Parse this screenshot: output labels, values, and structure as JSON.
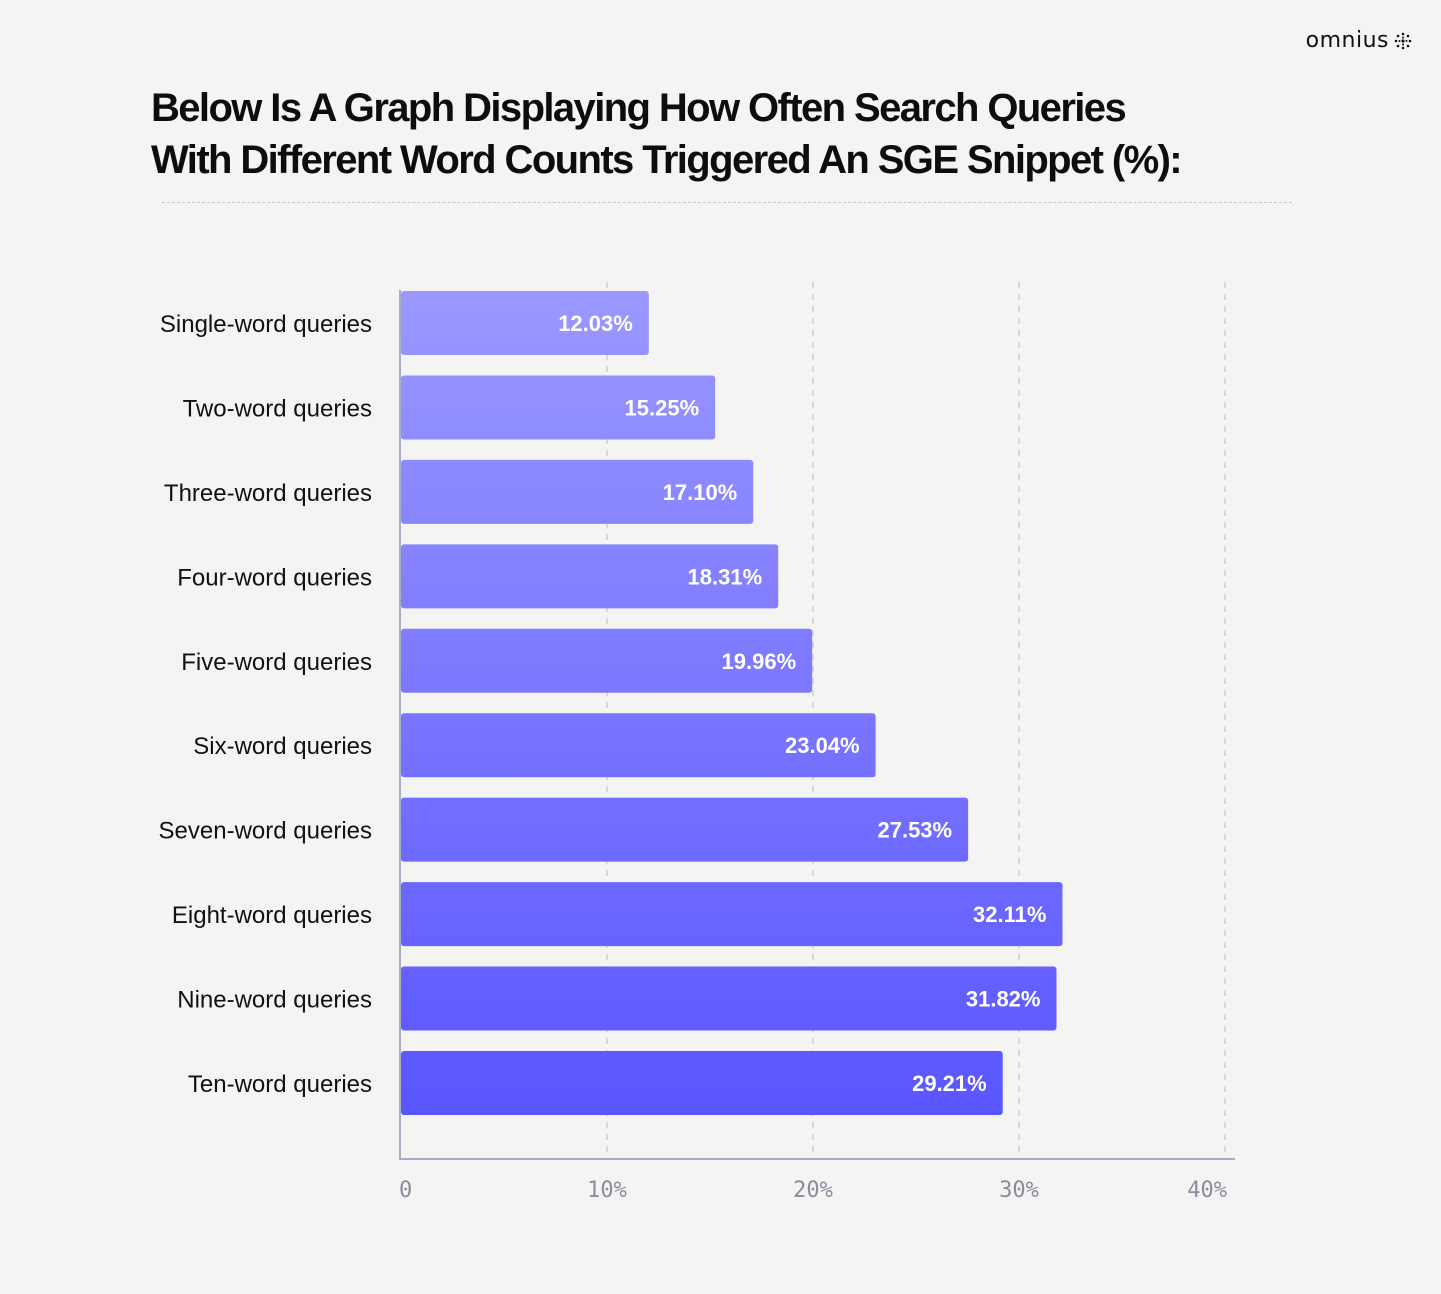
{
  "brand": {
    "name": "omnius",
    "icon": "sunburst-dots-icon"
  },
  "header": {
    "title_line1": "Below Is A Graph Displaying How Often Search Queries",
    "title_line2": "With Different Word Counts Triggered An SGE Snippet (%):"
  },
  "chart_data": {
    "type": "bar",
    "orientation": "horizontal",
    "title": "Below Is A Graph Displaying How Often Search Queries With Different Word Counts Triggered An SGE Snippet (%):",
    "xlabel": "",
    "ylabel": "",
    "categories": [
      "Single-word queries",
      "Two-word queries",
      "Three-word queries",
      "Four-word queries",
      "Five-word queries",
      "Six-word queries",
      "Seven-word queries",
      "Eight-word queries",
      "Nine-word queries",
      "Ten-word queries"
    ],
    "values": [
      12.03,
      15.25,
      17.1,
      18.31,
      19.96,
      23.04,
      27.53,
      32.11,
      31.82,
      29.21
    ],
    "value_labels": [
      "12.03%",
      "15.25%",
      "17.10%",
      "18.31%",
      "19.96%",
      "23.04%",
      "27.53%",
      "32.11%",
      "31.82%",
      "29.21%"
    ],
    "xlim": [
      0,
      40
    ],
    "x_ticks": [
      0,
      10,
      20,
      30,
      40
    ],
    "x_tick_labels": [
      "0",
      "10%",
      "20%",
      "30%",
      "40%"
    ],
    "grid": "vertical dashed",
    "legend": "none",
    "colors": {
      "bar_light": "#9b98ff",
      "bar_dark": "#5a55ff",
      "grid": "#c6c6c6",
      "axis": "#a9adc4",
      "tick": "#8a8da0"
    }
  }
}
